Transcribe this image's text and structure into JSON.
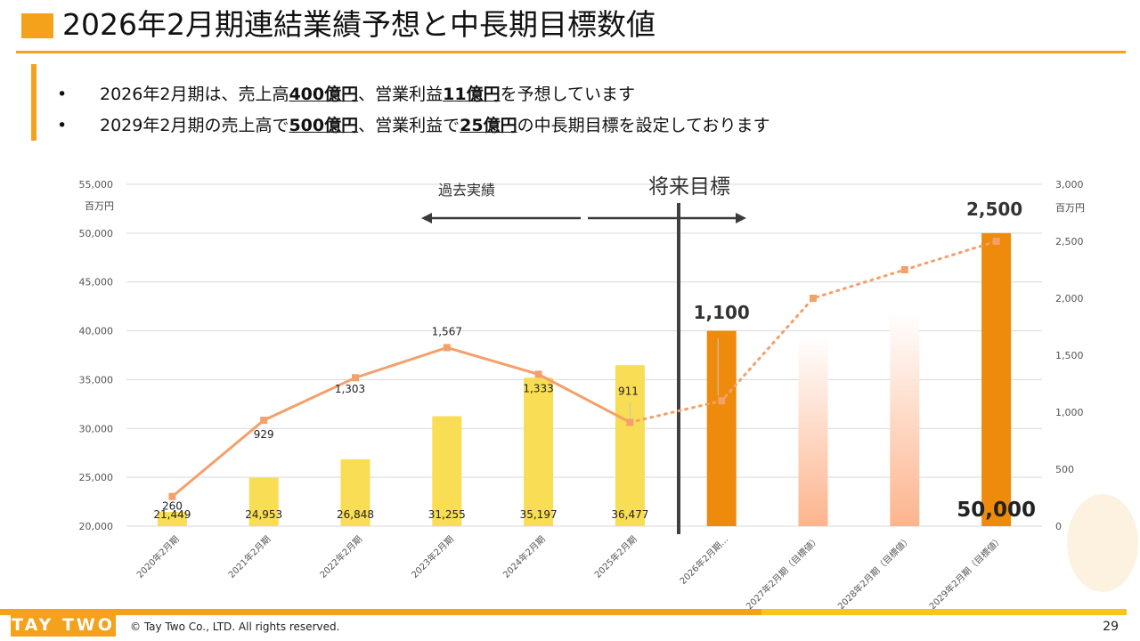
{
  "header": {
    "title": "2026年2月期連結業績予想と中長期目標数値"
  },
  "bullets": [
    {
      "marker": "•",
      "parts": [
        {
          "t": "2026年2月期は、売上高"
        },
        {
          "t": "400億円",
          "b": true
        },
        {
          "t": "、営業利益"
        },
        {
          "t": "11億円",
          "b": true
        },
        {
          "t": "を予想しています"
        }
      ]
    },
    {
      "marker": "•",
      "parts": [
        {
          "t": "2029年2月期の売上高で"
        },
        {
          "t": "500億円",
          "b": true
        },
        {
          "t": "、営業利益で"
        },
        {
          "t": "25億円",
          "b": true
        },
        {
          "t": "の中長期目標を設定しております"
        }
      ]
    }
  ],
  "footer": {
    "logo": "TAY TWO",
    "copyright": "© Tay Two Co., LTD. All rights reserved.",
    "page": "29"
  },
  "chart_data": {
    "type": "bar",
    "categories": [
      "2020年2月期",
      "2021年2月期",
      "2022年2月期",
      "2023年2月期",
      "2024年2月期",
      "2025年2月期",
      "2026年2月期…",
      "2027年2月期（目標値）",
      "2028年2月期（目標値）",
      "2029年2月期（目標値）"
    ],
    "series": [
      {
        "kind": "bar",
        "values": [
          21449,
          24953,
          26848,
          31255,
          35197,
          36477,
          40000,
          39500,
          42000,
          50000
        ],
        "labels": [
          "21,449",
          "24,953",
          "26,848",
          "31,255",
          "35,197",
          "36,477",
          "",
          "",
          "",
          "50,000"
        ],
        "colors": [
          "#f8dd55",
          "#f8dd55",
          "#f8dd55",
          "#f8dd55",
          "#f8dd55",
          "#f8dd55",
          "#ee8a0c",
          "gradient",
          "gradient",
          "#ee8a0c"
        ]
      },
      {
        "kind": "line",
        "axis": "right",
        "values": [
          260,
          929,
          1303,
          1567,
          1333,
          911,
          1100,
          2000,
          2250,
          2500
        ],
        "labels": [
          "260",
          "929",
          "1,303",
          "1,567",
          "1,333",
          "911",
          "1,100",
          "",
          "",
          "2,500"
        ],
        "solid_until_index": 5,
        "color": "#f4a06a"
      }
    ],
    "left_axis": {
      "ylim": [
        20000,
        55000
      ],
      "ticks": [
        20000,
        25000,
        30000,
        35000,
        40000,
        45000,
        50000,
        55000
      ],
      "tick_labels": [
        "20,000",
        "25,000",
        "30,000",
        "35,000",
        "40,000",
        "45,000",
        "50,000",
        "55,000"
      ],
      "unit": "百万円"
    },
    "right_axis": {
      "ylim": [
        0,
        3000
      ],
      "ticks": [
        0,
        500,
        1000,
        1500,
        2000,
        2500,
        3000
      ],
      "tick_labels": [
        "0",
        "500",
        "1,000",
        "1,500",
        "2,000",
        "2,500",
        "3,000"
      ],
      "unit": "百万円"
    },
    "annotations": {
      "past_label": "過去実績",
      "future_label": "将来目標"
    },
    "grid": true
  }
}
